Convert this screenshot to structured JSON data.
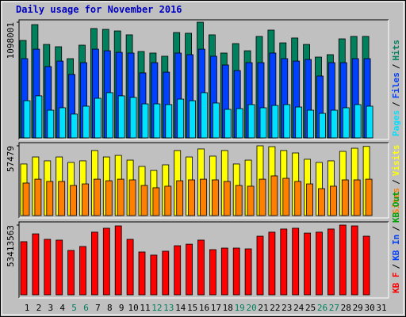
{
  "title": "Daily usage for November 2016",
  "legend_separator": "/",
  "chart_data": [
    {
      "type": "bar",
      "ylim": [
        0,
        1098001
      ],
      "yticks": [
        1098001
      ],
      "series": [
        {
          "name": "Hits",
          "color": "#00805c",
          "values": [
            925000,
            1075000,
            887000,
            865000,
            752000,
            880000,
            1038000,
            1030000,
            1015000,
            978000,
            820000,
            805000,
            775000,
            1000000,
            993000,
            1098001,
            978000,
            805000,
            895000,
            827000,
            963000,
            1023000,
            902000,
            948000,
            887000,
            767000,
            790000,
            940000,
            963000,
            963000,
            null
          ]
        },
        {
          "name": "Files",
          "color": "#0040ff",
          "values": [
            752000,
            842000,
            677000,
            729000,
            602000,
            714000,
            842000,
            827000,
            812000,
            805000,
            617000,
            714000,
            624000,
            805000,
            790000,
            842000,
            775000,
            692000,
            639000,
            714000,
            714000,
            805000,
            752000,
            729000,
            744000,
            587000,
            714000,
            714000,
            752000,
            752000,
            null
          ]
        },
        {
          "name": "Pages",
          "color": "#00e0ff",
          "values": [
            353000,
            399000,
            263000,
            286000,
            226000,
            301000,
            376000,
            429000,
            399000,
            384000,
            323000,
            323000,
            316000,
            368000,
            353000,
            429000,
            331000,
            271000,
            278000,
            316000,
            286000,
            308000,
            316000,
            293000,
            263000,
            233000,
            263000,
            286000,
            316000,
            301000,
            null
          ]
        }
      ]
    },
    {
      "type": "bar",
      "ylim": [
        0,
        57479
      ],
      "yticks": [
        57479
      ],
      "series": [
        {
          "name": "Visits",
          "color": "#ffff00",
          "values": [
            42500,
            48300,
            45100,
            48300,
            43800,
            45100,
            53600,
            48300,
            49600,
            45700,
            40500,
            37200,
            41800,
            53600,
            48300,
            54900,
            49000,
            53600,
            42500,
            45700,
            57479,
            56800,
            53600,
            51600,
            46400,
            43800,
            45100,
            52900,
            55500,
            57000,
            null
          ]
        },
        {
          "name": "Sites",
          "color": "#ff8000",
          "values": [
            26800,
            30000,
            28100,
            28100,
            24800,
            26100,
            30000,
            28700,
            30000,
            29400,
            24800,
            22900,
            24200,
            28700,
            29400,
            30000,
            29400,
            28100,
            24800,
            24200,
            30000,
            32700,
            30700,
            28100,
            26100,
            22200,
            24200,
            29400,
            29400,
            30000,
            null
          ]
        }
      ]
    },
    {
      "type": "bar",
      "ylim": [
        0,
        53413563
      ],
      "yticks": [
        53413563
      ],
      "series": [
        {
          "name": "KB F",
          "color": "#ff0000",
          "values": [
            40700000,
            46700000,
            42500000,
            41900000,
            34000000,
            37000000,
            48000000,
            51000000,
            52800000,
            42500000,
            32800000,
            30400000,
            33400000,
            37600000,
            38800000,
            41900000,
            34600000,
            35800000,
            35800000,
            35200000,
            44900000,
            48000000,
            50400000,
            51000000,
            47300000,
            48000000,
            50400000,
            53413563,
            52800000,
            44900000,
            null
          ]
        }
      ],
      "legend_only": [
        {
          "name": "KB In",
          "color": "#0040ff"
        },
        {
          "name": "KB Out",
          "color": "#00a000"
        }
      ],
      "categories": [
        "1",
        "2",
        "3",
        "4",
        "5",
        "6",
        "7",
        "8",
        "9",
        "10",
        "11",
        "12",
        "13",
        "14",
        "15",
        "16",
        "17",
        "18",
        "19",
        "20",
        "21",
        "22",
        "23",
        "24",
        "25",
        "26",
        "27",
        "28",
        "29",
        "30",
        "31"
      ],
      "category_colors": [
        "#000000",
        "#000000",
        "#000000",
        "#000000",
        "#00805c",
        "#00805c",
        "#000000",
        "#000000",
        "#000000",
        "#000000",
        "#000000",
        "#00805c",
        "#00805c",
        "#000000",
        "#000000",
        "#000000",
        "#000000",
        "#000000",
        "#00805c",
        "#00805c",
        "#000000",
        "#000000",
        "#000000",
        "#000000",
        "#000000",
        "#00805c",
        "#00805c",
        "#000000",
        "#000000",
        "#000000",
        "#000000"
      ]
    }
  ]
}
